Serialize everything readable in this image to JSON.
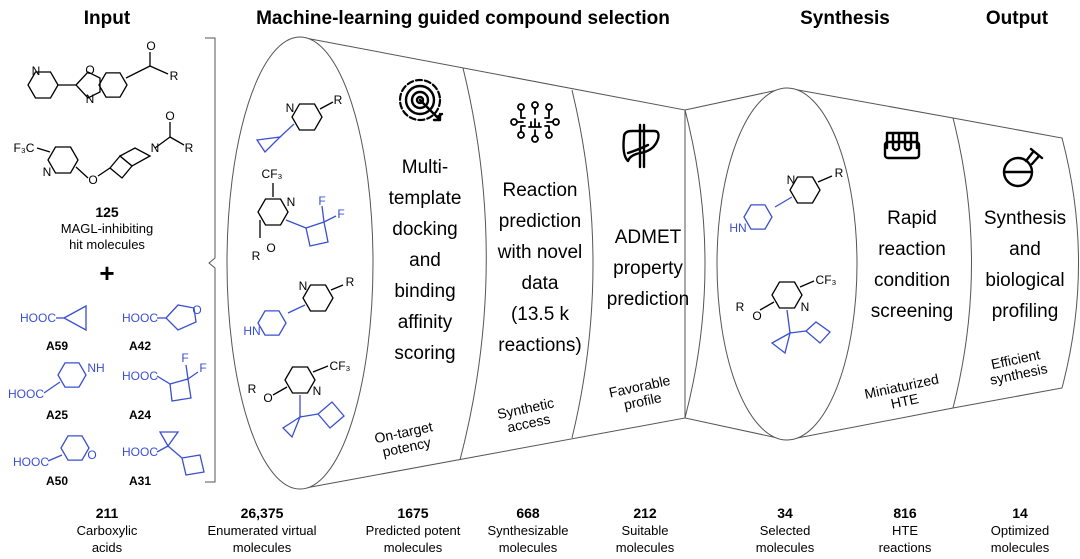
{
  "headers": {
    "input": "Input",
    "ml": "Machine-learning guided compound selection",
    "synthesis": "Synthesis",
    "output": "Output"
  },
  "colors": {
    "structure_highlight": "#3a4fd0",
    "outline": "#555555"
  },
  "input": {
    "hits_count": "125",
    "hits_label": [
      "MAGL-inhibiting",
      "hit molecules"
    ],
    "plus": "+",
    "acids": [
      "A59",
      "A42",
      "A25",
      "A24",
      "A50",
      "A31"
    ],
    "acid_group": "HOOC",
    "acids_count": "211",
    "acids_label": [
      "Carboxylic",
      "acids"
    ]
  },
  "atoms": {
    "N": "N",
    "O": "O",
    "R": "R",
    "F": "F",
    "CF3": "CF₃",
    "F3C": "F₃C",
    "HN": "HN",
    "NH": "NH"
  },
  "stages": [
    {
      "icon": "target-icon",
      "title": [
        "Multi-",
        "template",
        "docking",
        "and",
        "binding",
        "affinity",
        "scoring"
      ],
      "note": [
        "On-target",
        "potency"
      ]
    },
    {
      "icon": "network-icon",
      "title": [
        "Reaction",
        "prediction",
        "with novel",
        "data",
        "(13.5 k",
        "reactions)"
      ],
      "note": [
        "Synthetic",
        "access"
      ]
    },
    {
      "icon": "liver-icon",
      "title": [
        "ADMET",
        "property",
        "prediction"
      ],
      "note": [
        "Favorable",
        "profile"
      ]
    },
    {
      "icon": "test-tube-rack-icon",
      "title": [
        "Rapid",
        "reaction",
        "condition",
        "screening"
      ],
      "note": [
        "Miniaturized",
        "HTE"
      ]
    },
    {
      "icon": "flask-icon",
      "title": [
        "Synthesis",
        "and",
        "biological",
        "profiling"
      ],
      "note": [
        "Efficient",
        "synthesis"
      ]
    }
  ],
  "counts": [
    {
      "value": "26,375",
      "label": [
        "Enumerated virtual",
        "molecules"
      ]
    },
    {
      "value": "1675",
      "label": [
        "Predicted potent",
        "molecules"
      ]
    },
    {
      "value": "668",
      "label": [
        "Synthesizable",
        "molecules"
      ]
    },
    {
      "value": "212",
      "label": [
        "Suitable",
        "molecules"
      ]
    },
    {
      "value": "34",
      "label": [
        "Selected",
        "molecules"
      ]
    },
    {
      "value": "816",
      "label": [
        "HTE",
        "reactions"
      ]
    },
    {
      "value": "14",
      "label": [
        "Optimized",
        "molecules"
      ]
    }
  ]
}
